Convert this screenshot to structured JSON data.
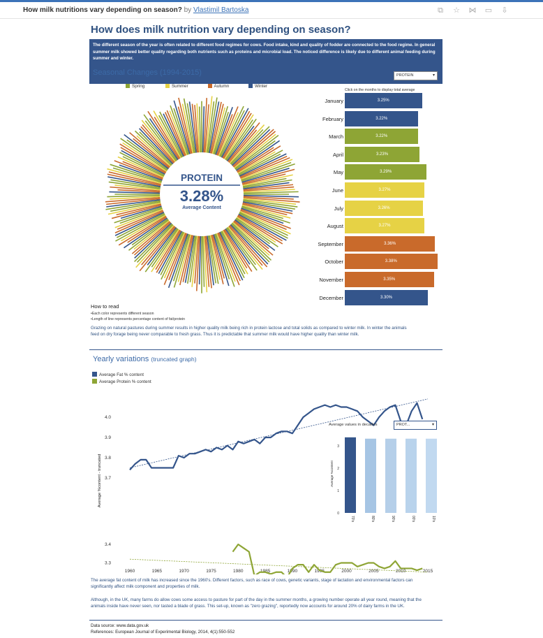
{
  "header": {
    "title": "How milk nutritions vary depending on season?",
    "by": "by",
    "author": "Vlastimil Bartoska"
  },
  "dashboard": {
    "title": "How does milk nutrition vary depending on season?",
    "intro": "The different season of the year is often related to different food regimes for cows. Food intake, kind and quality of fodder are connected to the food regime. In general summer milk showed better quality regarding both nutrients such as proteins and microbial load. The noticed difference is likely due to different animal feeding during summer and winter.",
    "seasonal_title": "Seasonal Changes (1994-2015)",
    "nutrient_select": "PROTEIN",
    "legend": [
      {
        "label": "Spring",
        "color": "#8ea535"
      },
      {
        "label": "Summer",
        "color": "#e6d245"
      },
      {
        "label": "Autumn",
        "color": "#c96a2b"
      },
      {
        "label": "Winter",
        "color": "#34558b"
      }
    ],
    "click_hint": "Click on the months to display total average",
    "center_nutrient": "PROTEIN",
    "center_value": "3.28%",
    "center_label": "Average Content",
    "how_to_read": "How to read",
    "how_to_read_1": "•Each color represents different season",
    "how_to_read_2": "•Length of line represents percentage content of fat/protein",
    "seasonal_text": "Grazing on natural pastures during summer results in higher quality milk being rich in protein lactose and total solids as compared to winter milk. In winter the animals feed on dry forage being never comparable to fresh grass. Thus it is predictable that summer milk would have higher quality than winter milk.",
    "yearly_title": "Yearly variations",
    "yearly_subtitle": "(truncated graph)",
    "yearly_legend_fat": "Average Fat % content",
    "yearly_legend_protein": "Average Protein % content",
    "y_axis_label": "Average %content - truncated",
    "decades_title": "Average values in decades",
    "decades_select": "PROT...",
    "decades_ylabel": "Average %content",
    "text_fat": "The average fat content of milk has increased since the 1960's. Different factors, such as race of cows, genetic variants, stage of lactation and environmental factors can significantly affect milk component and properties of milk.",
    "text_grazing": "Although, in the UK, many farms do allow cows some access to pasture for part of the day in the summer months, a growing number operate all year round, meaning that the animals inside have never seen, nor tasted a blade of grass. This set-up, known as \"zero grazing\", reportedly now accounts for around 20% of dairy farms in the UK.",
    "source": "Data source: www.data.gov.uk",
    "references": "References: European Journal of Experimental Biology, 2014, 4(1):550-552"
  },
  "months": [
    {
      "label": "January",
      "value": "3.25%",
      "season": "Winter"
    },
    {
      "label": "February",
      "value": "3.22%",
      "season": "Winter"
    },
    {
      "label": "March",
      "value": "3.22%",
      "season": "Spring"
    },
    {
      "label": "April",
      "value": "3.23%",
      "season": "Spring"
    },
    {
      "label": "May",
      "value": "3.29%",
      "season": "Spring"
    },
    {
      "label": "June",
      "value": "3.27%",
      "season": "Summer"
    },
    {
      "label": "July",
      "value": "3.26%",
      "season": "Summer"
    },
    {
      "label": "August",
      "value": "3.27%",
      "season": "Summer"
    },
    {
      "label": "September",
      "value": "3.36%",
      "season": "Autumn"
    },
    {
      "label": "October",
      "value": "3.38%",
      "season": "Autumn"
    },
    {
      "label": "November",
      "value": "3.35%",
      "season": "Autumn"
    },
    {
      "label": "December",
      "value": "3.30%",
      "season": "Winter"
    }
  ],
  "chart_data": [
    {
      "type": "bar",
      "title": "",
      "categories": [
        "January",
        "February",
        "March",
        "April",
        "May",
        "June",
        "July",
        "August",
        "September",
        "October",
        "November",
        "December"
      ],
      "values": [
        3.25,
        3.22,
        3.22,
        3.23,
        3.29,
        3.27,
        3.26,
        3.27,
        3.36,
        3.38,
        3.35,
        3.3
      ],
      "unit": "%"
    },
    {
      "type": "line",
      "title": "Yearly variations",
      "ylabel": "Average %content - truncated",
      "x_ticks": [
        1960,
        1965,
        1970,
        1975,
        1980,
        1985,
        1990,
        1995,
        2000,
        2005,
        2010,
        2015
      ],
      "series": [
        {
          "name": "Average Fat % content",
          "color": "#34558b",
          "x": [
            1960,
            1961,
            1962,
            1963,
            1964,
            1965,
            1966,
            1967,
            1968,
            1969,
            1970,
            1971,
            1972,
            1973,
            1974,
            1975,
            1976,
            1977,
            1978,
            1979,
            1980,
            1981,
            1982,
            1983,
            1984,
            1985,
            1986,
            1987,
            1988,
            1989,
            1990,
            1991,
            1992,
            1993,
            1994,
            1995,
            1996,
            1997,
            1998,
            1999,
            2000,
            2001,
            2002,
            2003,
            2004,
            2005,
            2006,
            2007,
            2008,
            2009,
            2010,
            2011,
            2012,
            2013,
            2014
          ],
          "y": [
            3.74,
            3.77,
            3.79,
            3.79,
            3.75,
            3.75,
            3.75,
            3.75,
            3.75,
            3.81,
            3.8,
            3.82,
            3.82,
            3.83,
            3.84,
            3.83,
            3.85,
            3.84,
            3.86,
            3.84,
            3.88,
            3.87,
            3.88,
            3.89,
            3.87,
            3.9,
            3.9,
            3.92,
            3.93,
            3.93,
            3.92,
            3.96,
            4.0,
            4.02,
            4.04,
            4.05,
            4.06,
            4.05,
            4.06,
            4.05,
            4.05,
            4.04,
            4.03,
            4.0,
            3.98,
            3.96,
            4.0,
            4.03,
            4.05,
            4.06,
            3.98,
            3.96,
            4.03,
            4.07,
            3.99
          ],
          "trend": [
            3.75,
            4.09
          ]
        },
        {
          "name": "Average Protein % content",
          "color": "#8ea535",
          "x": [
            1979,
            1980,
            1981,
            1982,
            1983,
            1984,
            1985,
            1986,
            1987,
            1988,
            1989,
            1990,
            1991,
            1992,
            1993,
            1994,
            1995,
            1996,
            1997,
            1998,
            1999,
            2000,
            2001,
            2002,
            2003,
            2004,
            2005,
            2006,
            2007,
            2008,
            2009,
            2010,
            2011,
            2012,
            2013,
            2014
          ],
          "y": [
            3.36,
            3.4,
            3.38,
            3.36,
            3.23,
            3.25,
            3.25,
            3.24,
            3.25,
            3.25,
            3.22,
            3.27,
            3.29,
            3.29,
            3.25,
            3.29,
            3.26,
            3.25,
            3.25,
            3.29,
            3.3,
            3.3,
            3.3,
            3.28,
            3.29,
            3.3,
            3.3,
            3.28,
            3.27,
            3.28,
            3.31,
            3.27,
            3.27,
            3.27,
            3.26,
            3.27
          ],
          "trend": [
            3.32,
            3.25
          ]
        }
      ]
    },
    {
      "type": "bar",
      "title": "Average values in decades",
      "categories": [
        "70's",
        "80's",
        "90's",
        "00's",
        "10's"
      ],
      "values": [
        3.38,
        3.32,
        3.32,
        3.32,
        3.32
      ],
      "ylim": [
        0,
        3.5
      ],
      "y_ticks": [
        0,
        1,
        2,
        3
      ]
    }
  ]
}
